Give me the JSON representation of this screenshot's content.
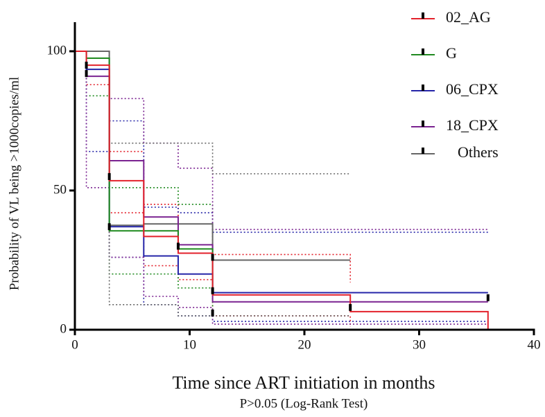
{
  "chart_data": {
    "type": "step",
    "xlabel": "Time since ART initiation in months",
    "subtitle": "P>0.05 (Log-Rank Test)",
    "ylabel": "Probability of VL  being >1000copies/ml",
    "x": [
      0,
      1,
      3,
      6,
      9,
      12,
      24,
      36
    ],
    "xlim": [
      0,
      40
    ],
    "xticks": [
      0,
      10,
      20,
      30,
      40
    ],
    "ylim": [
      0,
      100
    ],
    "yticks": [
      0,
      50,
      100
    ],
    "series": [
      {
        "name": "02_AG",
        "color": "#e3202a",
        "values": [
          100,
          95,
          53.5,
          33.5,
          27.5,
          12.5,
          6.5,
          0
        ],
        "ci_upper": [
          100,
          100,
          64,
          45,
          38,
          27,
          17,
          null
        ],
        "ci_lower": [
          100,
          88,
          42,
          23,
          18,
          5,
          1,
          null
        ]
      },
      {
        "name": "G",
        "color": "#1f8a1f",
        "values": [
          100,
          97.5,
          35.5,
          35.5,
          29,
          12.5,
          null,
          null
        ],
        "ci_upper": [
          100,
          100,
          51,
          51,
          45,
          30,
          null,
          null
        ],
        "ci_lower": [
          100,
          84,
          20,
          20,
          15,
          4,
          null,
          null
        ]
      },
      {
        "name": "06_CPX",
        "color": "#2424a8",
        "values": [
          100,
          93.5,
          37,
          26.5,
          20,
          13.3,
          13.3,
          13.3
        ],
        "ci_upper": [
          100,
          100,
          75,
          44,
          42,
          35,
          35,
          35
        ],
        "ci_lower": [
          100,
          64,
          26,
          9,
          5,
          3,
          3,
          3
        ]
      },
      {
        "name": "18_CPX",
        "color": "#7a2290",
        "values": [
          100,
          91,
          60.7,
          40.5,
          30.5,
          10,
          10,
          10
        ],
        "ci_upper": [
          100,
          100,
          83,
          67,
          58,
          36,
          36,
          36
        ],
        "ci_lower": [
          100,
          51,
          26,
          12,
          8,
          2,
          2,
          2
        ]
      },
      {
        "name": "Others",
        "color": "#666666",
        "values": [
          100,
          100,
          37.5,
          38,
          38,
          25,
          25,
          null
        ],
        "ci_upper": [
          100,
          100,
          67,
          67,
          67,
          56,
          56,
          null
        ],
        "ci_lower": [
          100,
          100,
          9,
          9,
          5,
          5,
          5,
          null
        ]
      }
    ],
    "censor_marks": {
      "x": [
        1,
        1,
        3,
        3,
        9,
        12,
        12,
        12,
        24,
        36
      ],
      "y": [
        95,
        92,
        55,
        37,
        30,
        26,
        14,
        6,
        8,
        11.5
      ]
    }
  }
}
